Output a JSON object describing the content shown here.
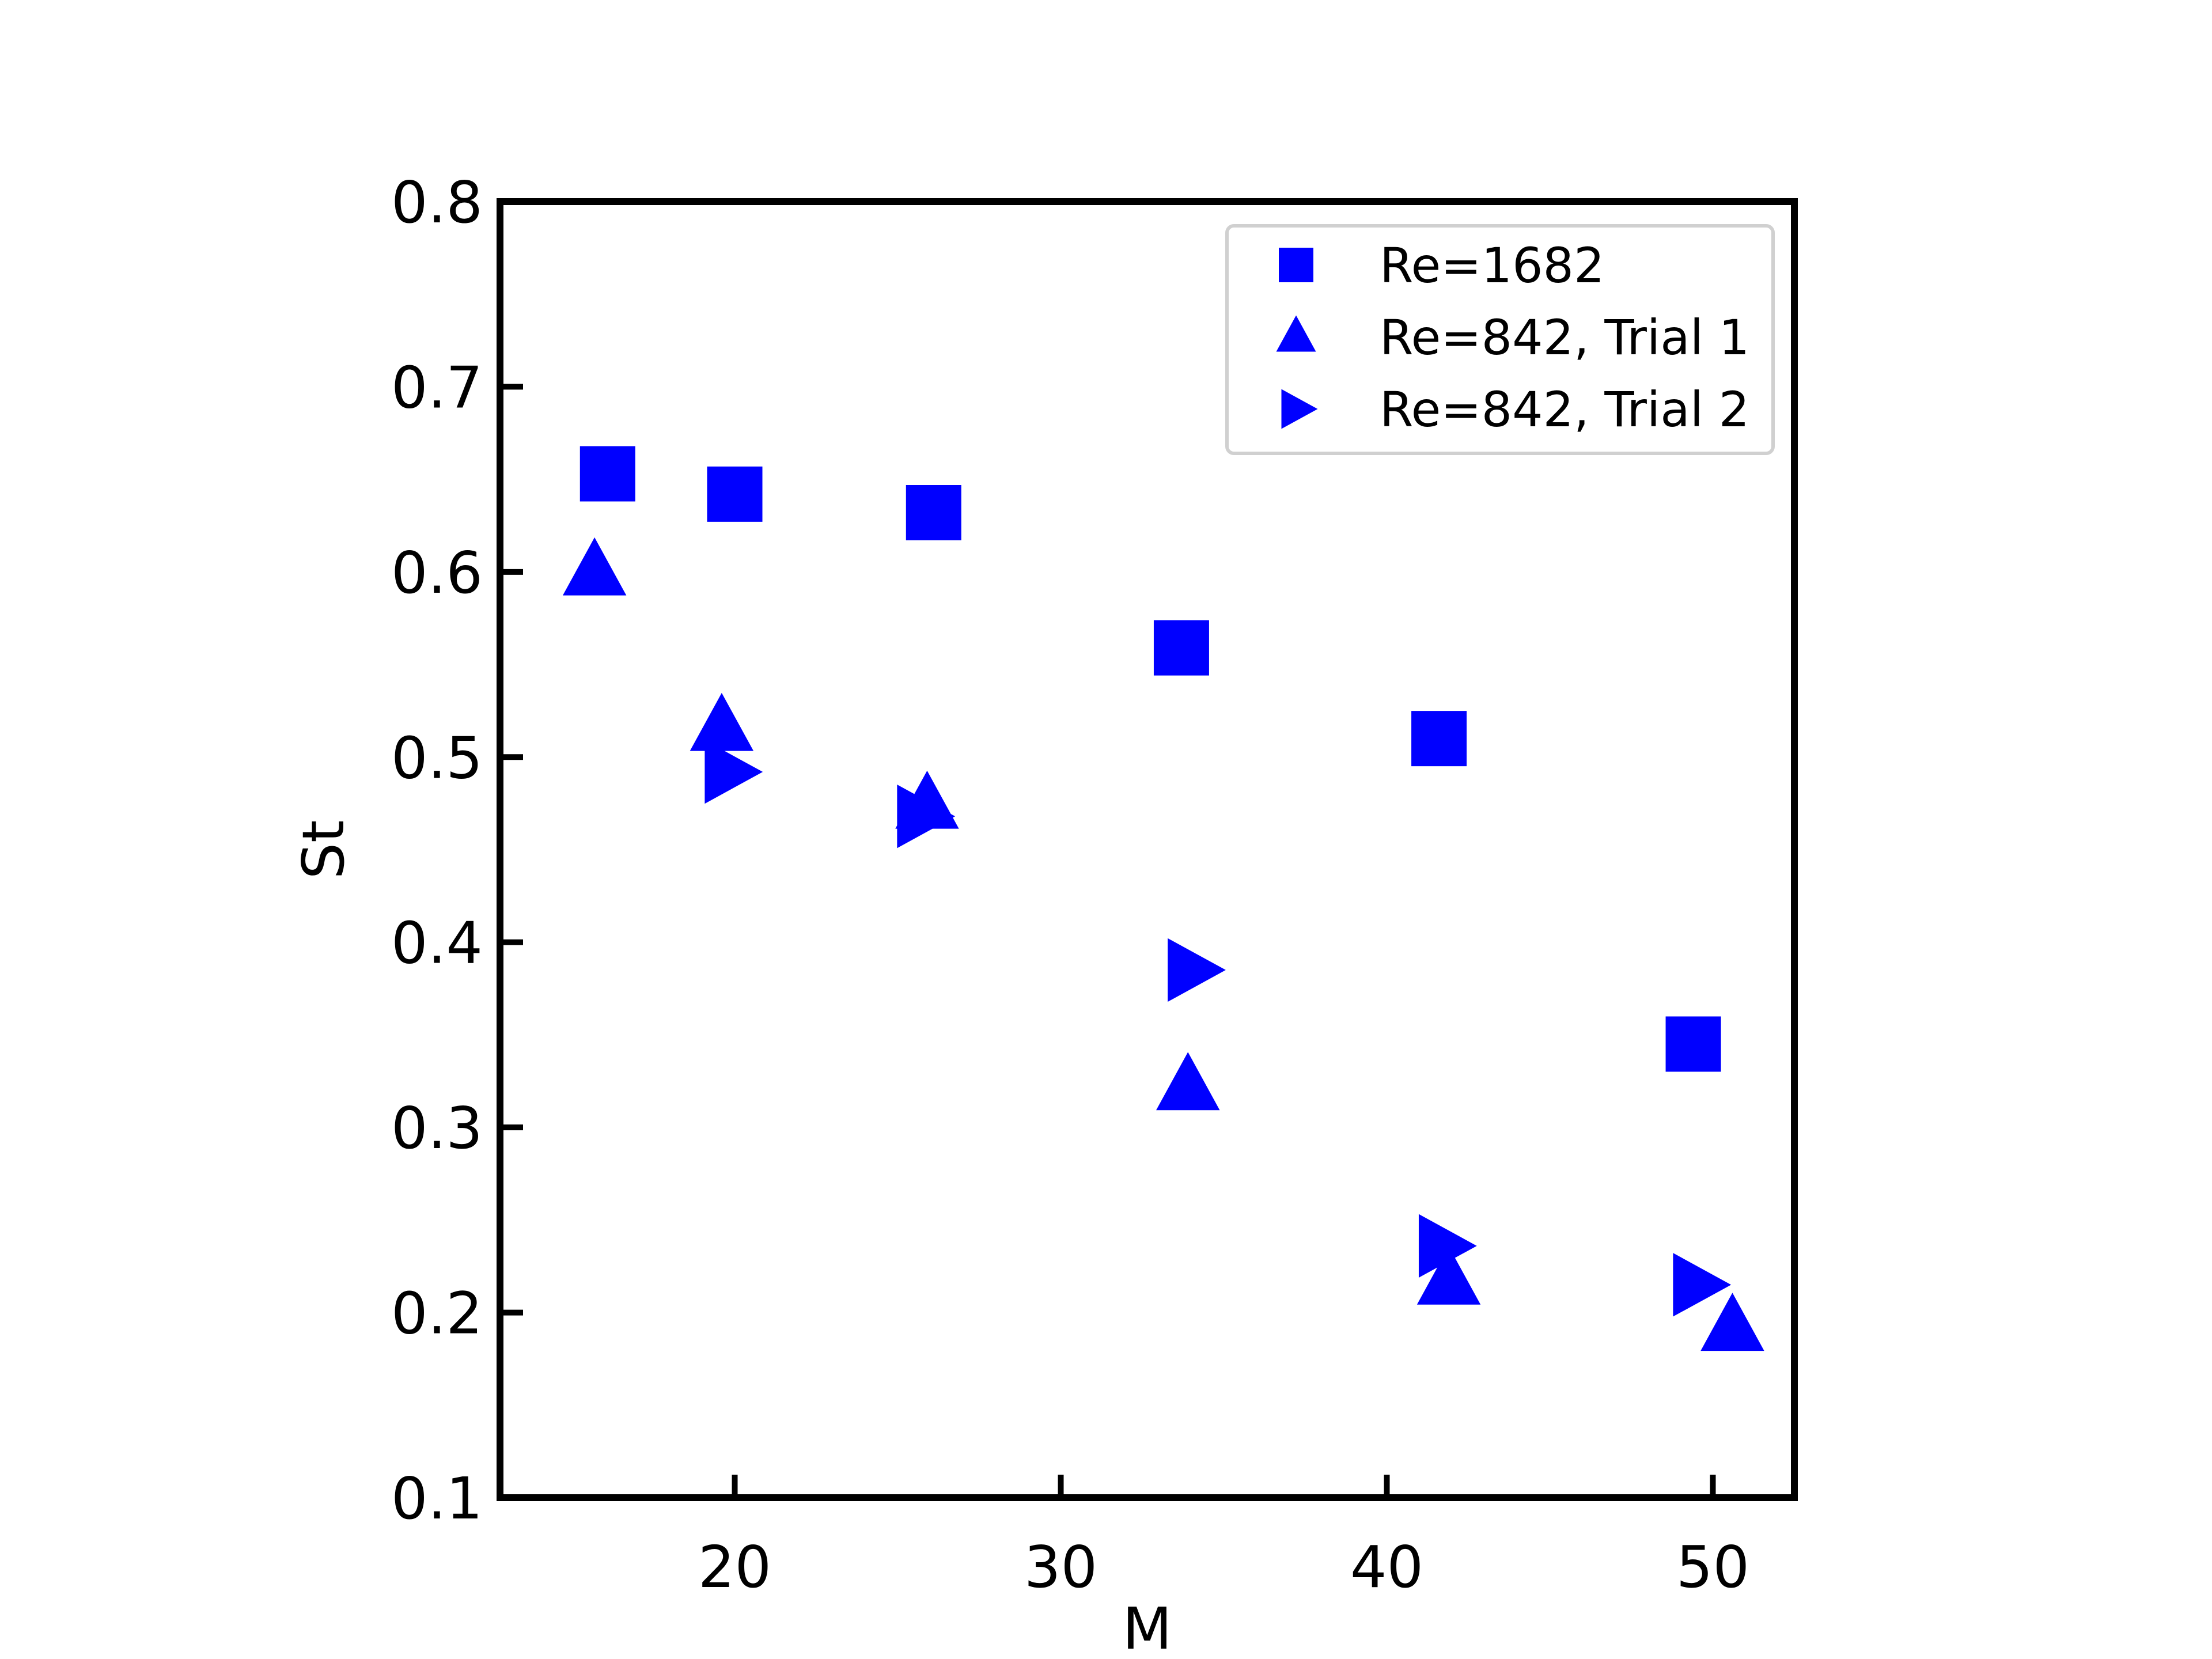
{
  "chart_data": {
    "type": "scatter",
    "title": "",
    "xlabel": "M",
    "ylabel": "St",
    "xlim": [
      12.8,
      52.5
    ],
    "ylim": [
      0.1,
      0.8
    ],
    "xticks": [
      20,
      30,
      40,
      50
    ],
    "xtick_labels": [
      "20",
      "30",
      "40",
      "50"
    ],
    "yticks": [
      0.1,
      0.2,
      0.3,
      0.4,
      0.5,
      0.6,
      0.7,
      0.8
    ],
    "ytick_labels": [
      "0.1",
      "0.2",
      "0.3",
      "0.4",
      "0.5",
      "0.6",
      "0.7",
      "0.8"
    ],
    "grid": false,
    "legend_position": "top-right",
    "color": "#0000ff",
    "series": [
      {
        "name": "Re=1682",
        "marker": "square",
        "x": [
          16.1,
          20.0,
          26.1,
          33.7,
          41.6,
          49.4
        ],
        "y": [
          0.653,
          0.642,
          0.632,
          0.559,
          0.51,
          0.345
        ]
      },
      {
        "name": "Re=842, Trial 1",
        "marker": "triangle-up",
        "x": [
          15.7,
          19.6,
          25.9,
          33.9,
          41.9,
          50.6
        ],
        "y": [
          0.6,
          0.516,
          0.474,
          0.322,
          0.217,
          0.192
        ]
      },
      {
        "name": "Re=842, Trial 2",
        "marker": "triangle-right",
        "x": [
          19.8,
          25.7,
          34.0,
          41.7,
          49.5
        ],
        "y": [
          0.492,
          0.468,
          0.385,
          0.236,
          0.215
        ]
      }
    ]
  }
}
